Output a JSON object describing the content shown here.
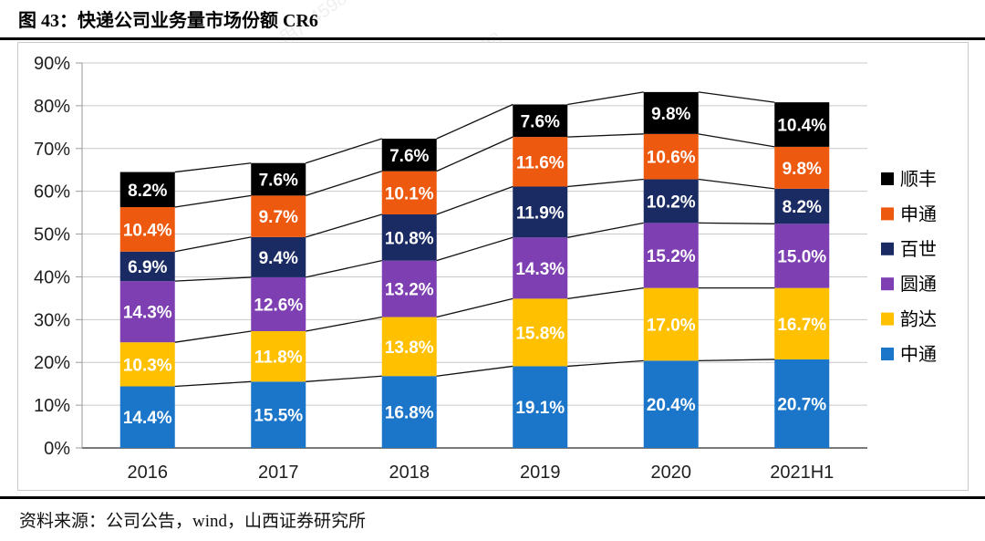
{
  "figure": {
    "title": "图 43：快递公司业务量市场份额 CR6",
    "source": "资料来源：公司公告，wind，山西证券研究所",
    "watermark": "用户4598"
  },
  "chart_data": {
    "type": "bar",
    "stacked": true,
    "title": "快递公司业务量市场份额 CR6",
    "categories": [
      "2016",
      "2017",
      "2018",
      "2019",
      "2020",
      "2021H1"
    ],
    "series": [
      {
        "name": "中通",
        "color": "#1B75C8",
        "values": [
          14.4,
          15.5,
          16.8,
          19.1,
          20.4,
          20.7
        ]
      },
      {
        "name": "韵达",
        "color": "#FFC000",
        "values": [
          10.3,
          11.8,
          13.8,
          15.8,
          17.0,
          16.7
        ]
      },
      {
        "name": "圆通",
        "color": "#7D3FB2",
        "values": [
          14.3,
          12.6,
          13.2,
          14.3,
          15.2,
          15.0
        ]
      },
      {
        "name": "百世",
        "color": "#1A2A63",
        "values": [
          6.9,
          9.4,
          10.8,
          11.9,
          10.2,
          8.2
        ]
      },
      {
        "name": "申通",
        "color": "#ED5A0F",
        "values": [
          10.4,
          9.7,
          10.1,
          11.6,
          10.6,
          9.8
        ]
      },
      {
        "name": "顺丰",
        "color": "#000000",
        "values": [
          8.2,
          7.6,
          7.6,
          7.6,
          9.8,
          10.4
        ]
      }
    ],
    "legend_order_top_to_bottom": [
      "顺丰",
      "申通",
      "百世",
      "圆通",
      "韵达",
      "中通"
    ],
    "legend_position": "right",
    "data_label_format": "0.0%",
    "ylim": [
      0,
      90
    ],
    "ytick_step": 10,
    "ytick_labels": [
      "0%",
      "10%",
      "20%",
      "30%",
      "40%",
      "50%",
      "60%",
      "70%",
      "80%",
      "90%"
    ],
    "grid": true,
    "series_lines": true
  }
}
